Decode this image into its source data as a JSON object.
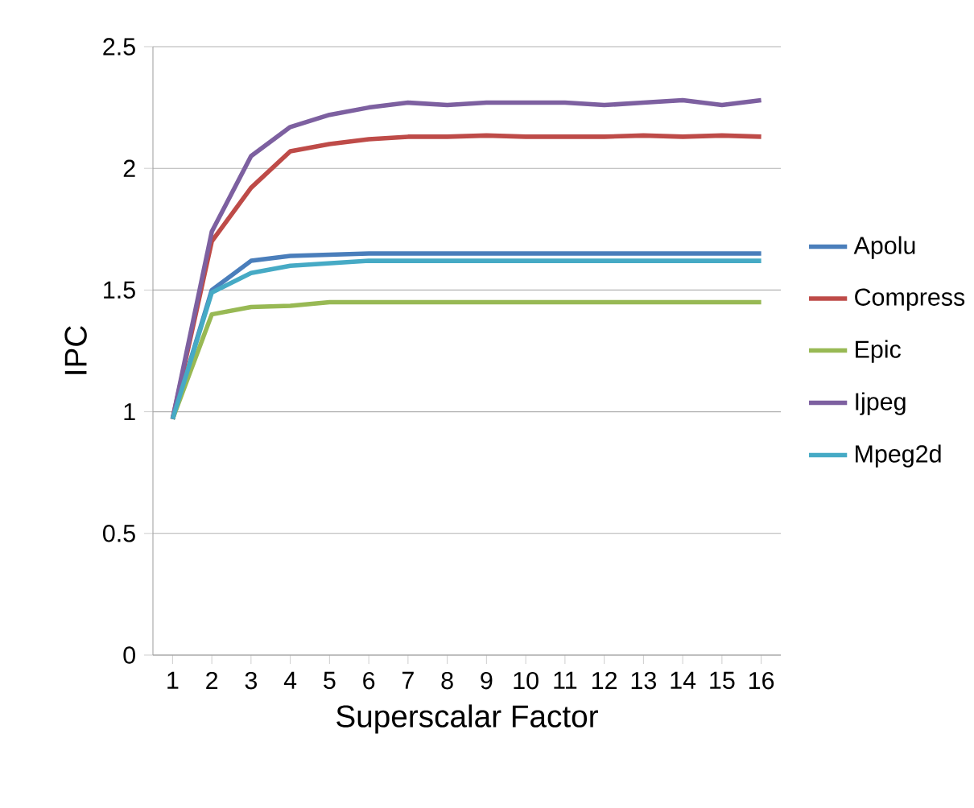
{
  "chart_data": {
    "type": "line",
    "xlabel": "Superscalar Factor",
    "ylabel": "IPC",
    "categories": [
      "1",
      "2",
      "3",
      "4",
      "5",
      "6",
      "7",
      "8",
      "9",
      "10",
      "11",
      "12",
      "13",
      "14",
      "15",
      "16"
    ],
    "series": [
      {
        "name": "Apolu",
        "color": "#4a7ebb",
        "values": [
          0.97,
          1.5,
          1.62,
          1.64,
          1.645,
          1.65,
          1.65,
          1.65,
          1.65,
          1.65,
          1.65,
          1.65,
          1.65,
          1.65,
          1.65,
          1.65
        ]
      },
      {
        "name": "Compress",
        "color": "#be4b48",
        "values": [
          0.97,
          1.7,
          1.92,
          2.07,
          2.1,
          2.12,
          2.13,
          2.13,
          2.135,
          2.13,
          2.13,
          2.13,
          2.135,
          2.13,
          2.135,
          2.13
        ]
      },
      {
        "name": "Epic",
        "color": "#98b954",
        "values": [
          0.97,
          1.4,
          1.43,
          1.435,
          1.45,
          1.45,
          1.45,
          1.45,
          1.45,
          1.45,
          1.45,
          1.45,
          1.45,
          1.45,
          1.45,
          1.45
        ]
      },
      {
        "name": "Ijpeg",
        "color": "#7d60a0",
        "values": [
          0.97,
          1.74,
          2.05,
          2.17,
          2.22,
          2.25,
          2.27,
          2.26,
          2.27,
          2.27,
          2.27,
          2.26,
          2.27,
          2.28,
          2.26,
          2.28
        ]
      },
      {
        "name": "Mpeg2d",
        "color": "#46aac5",
        "values": [
          0.97,
          1.49,
          1.57,
          1.6,
          1.61,
          1.62,
          1.62,
          1.62,
          1.62,
          1.62,
          1.62,
          1.62,
          1.62,
          1.62,
          1.62,
          1.62
        ]
      }
    ],
    "ylim": [
      0,
      2.5
    ],
    "yticks": [
      0,
      0.5,
      1,
      1.5,
      2,
      2.5
    ],
    "grid": "y",
    "legend": "right",
    "marker": "none",
    "line_style": "solid"
  }
}
